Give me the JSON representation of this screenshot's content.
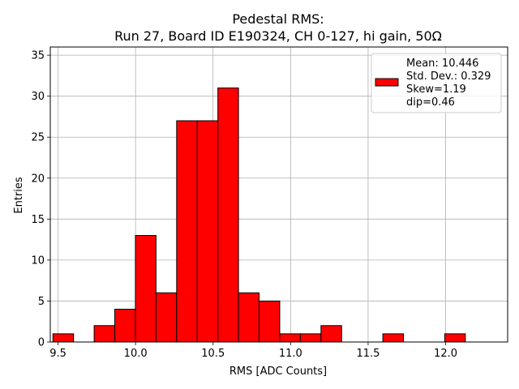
{
  "chart_data": {
    "type": "bar",
    "title_line1": "Pedestal RMS:",
    "title_line2": "Run 27, Board ID E190324, CH 0-127, hi gain, 50Ω",
    "xlabel": "RMS [ADC Counts]",
    "ylabel": "Entries",
    "xlim": [
      9.45,
      12.4
    ],
    "ylim": [
      0,
      36
    ],
    "grid": true,
    "bin_width": 0.133,
    "bins": [
      {
        "x0": 9.467,
        "count": 1
      },
      {
        "x0": 9.6,
        "count": 0
      },
      {
        "x0": 9.733,
        "count": 2
      },
      {
        "x0": 9.866,
        "count": 4
      },
      {
        "x0": 9.999,
        "count": 13
      },
      {
        "x0": 10.132,
        "count": 6
      },
      {
        "x0": 10.265,
        "count": 27
      },
      {
        "x0": 10.398,
        "count": 27
      },
      {
        "x0": 10.531,
        "count": 31
      },
      {
        "x0": 10.664,
        "count": 6
      },
      {
        "x0": 10.797,
        "count": 5
      },
      {
        "x0": 10.93,
        "count": 1
      },
      {
        "x0": 11.063,
        "count": 1
      },
      {
        "x0": 11.196,
        "count": 2
      },
      {
        "x0": 11.329,
        "count": 0
      },
      {
        "x0": 11.462,
        "count": 0
      },
      {
        "x0": 11.595,
        "count": 1
      },
      {
        "x0": 11.728,
        "count": 0
      },
      {
        "x0": 11.861,
        "count": 0
      },
      {
        "x0": 11.994,
        "count": 1
      },
      {
        "x0": 12.127,
        "count": 0
      }
    ],
    "x_ticks": [
      {
        "value": 9.5,
        "label": "9.5"
      },
      {
        "value": 10.0,
        "label": "10.0"
      },
      {
        "value": 10.5,
        "label": "10.5"
      },
      {
        "value": 11.0,
        "label": "11.0"
      },
      {
        "value": 11.5,
        "label": "11.5"
      },
      {
        "value": 12.0,
        "label": "12.0"
      }
    ],
    "y_ticks": [
      {
        "value": 0,
        "label": "0"
      },
      {
        "value": 5,
        "label": "5"
      },
      {
        "value": 10,
        "label": "10"
      },
      {
        "value": 15,
        "label": "15"
      },
      {
        "value": 20,
        "label": "20"
      },
      {
        "value": 25,
        "label": "25"
      },
      {
        "value": 30,
        "label": "30"
      },
      {
        "value": 35,
        "label": "35"
      }
    ],
    "legend": {
      "placement": "top-right",
      "lines": [
        "Mean: 10.446",
        "Std. Dev.: 0.329",
        "Skew=1.19",
        "dip=0.46"
      ]
    },
    "colors": {
      "bar_fill": "#ff0000",
      "bar_edge": "#000000",
      "grid": "#b0b0b0"
    }
  }
}
